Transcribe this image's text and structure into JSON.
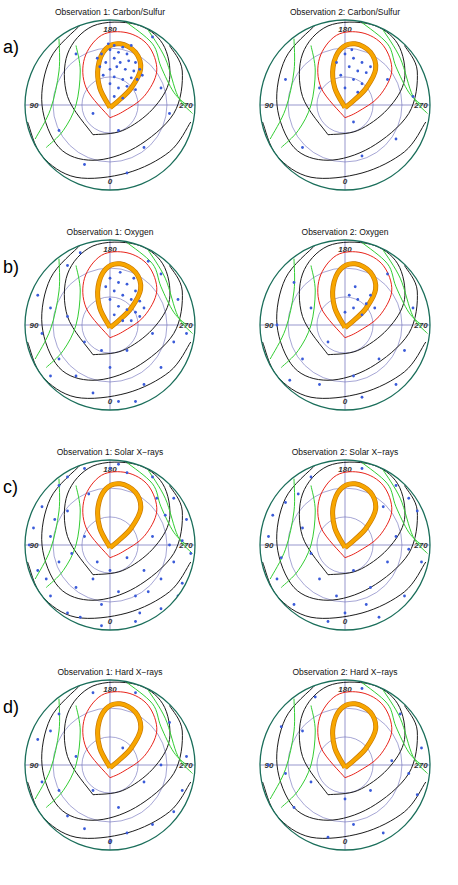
{
  "panel_labels": [
    "a)",
    "b)",
    "c)",
    "d)"
  ],
  "overlay": {
    "contours": [
      {
        "color": "#1c1c1c",
        "line_style": "solid",
        "x": [
          -0.2,
          -0.5,
          -0.5,
          -0.2,
          0.3,
          0.62,
          0.7,
          0.5,
          0.15,
          -0.2
        ],
        "y": [
          -0.35,
          0.1,
          0.6,
          0.93,
          0.95,
          0.72,
          0.3,
          -0.05,
          -0.3,
          -0.35
        ]
      },
      {
        "color": "#1c1c1c",
        "line_style": "solid",
        "x": [
          -0.35,
          -0.7,
          -0.8,
          -0.6,
          -0.2,
          0.3,
          0.75,
          0.85,
          0.7
        ],
        "y": [
          0.94,
          0.55,
          0.0,
          -0.5,
          -0.65,
          -0.5,
          -0.1,
          0.4,
          0.7
        ]
      },
      {
        "color": "#1c1c1c",
        "line_style": "solid",
        "x": [
          -0.97,
          -0.8,
          -0.4,
          0.2,
          0.7,
          0.95
        ],
        "y": [
          -0.2,
          -0.6,
          -0.85,
          -0.8,
          -0.55,
          -0.2
        ]
      },
      {
        "color": "#33cc33",
        "line_style": "solid",
        "x": [
          -0.4,
          -0.35,
          -0.4,
          -0.55,
          -0.75
        ],
        "y": [
          0.7,
          0.4,
          0.0,
          -0.3,
          -0.5
        ]
      },
      {
        "color": "#33cc33",
        "line_style": "solid",
        "x": [
          -0.6,
          -0.6,
          -0.7,
          -0.88
        ],
        "y": [
          0.78,
          0.4,
          -0.05,
          -0.4
        ]
      },
      {
        "color": "#33cc33",
        "line_style": "solid",
        "x": [
          0.45,
          0.65,
          0.8,
          0.97
        ],
        "y": [
          0.88,
          0.55,
          0.1,
          -0.1
        ]
      },
      {
        "color": "#33cc33",
        "line_style": "solid",
        "x": [
          0.2,
          0.5,
          0.6,
          0.75,
          0.9
        ],
        "y": [
          0.97,
          0.72,
          0.45,
          0.15,
          0.0
        ]
      },
      {
        "color": "#e8231a",
        "line_style": "solid",
        "x": [
          0.0,
          -0.28,
          -0.3,
          -0.1,
          0.2,
          0.45,
          0.55,
          0.4,
          0.15,
          0.0
        ],
        "y": [
          -0.15,
          0.2,
          0.55,
          0.82,
          0.85,
          0.7,
          0.4,
          0.1,
          -0.08,
          -0.15
        ]
      },
      {
        "color": "#f7a600",
        "line_style": "thick",
        "x": [
          0.0,
          -0.12,
          -0.14,
          -0.05,
          0.12,
          0.3,
          0.36,
          0.25,
          0.1,
          0.0
        ],
        "y": [
          -0.03,
          0.2,
          0.45,
          0.66,
          0.72,
          0.62,
          0.42,
          0.2,
          0.05,
          -0.03
        ]
      }
    ]
  },
  "chart_data": [
    {
      "type": "scatter",
      "title": "Observation 1: Carbon/Sulfur",
      "color": "#3a5bd9",
      "marker": "dot",
      "xlim": [
        -1,
        1
      ],
      "ylim": [
        -1,
        1
      ],
      "angle_ticks": [
        0,
        90,
        180,
        270
      ],
      "x": [
        -0.1,
        0.0,
        0.05,
        0.1,
        0.15,
        0.2,
        -0.05,
        0.05,
        0.12,
        0.22,
        0.3,
        -0.12,
        0.0,
        0.08,
        0.18,
        0.28,
        0.35,
        -0.08,
        0.05,
        0.15,
        0.25,
        0.32,
        0.0,
        0.1,
        0.2,
        0.3,
        0.05,
        0.15,
        -0.02,
        0.25,
        -0.15,
        0.38,
        0.5,
        -0.4,
        0.6,
        -0.2,
        0.1,
        0.4,
        -0.6,
        0.7,
        -0.3,
        0.2
      ],
      "y": [
        0.6,
        0.65,
        0.7,
        0.62,
        0.68,
        0.6,
        0.5,
        0.55,
        0.5,
        0.52,
        0.5,
        0.45,
        0.42,
        0.45,
        0.42,
        0.4,
        0.42,
        0.35,
        0.33,
        0.3,
        0.32,
        0.3,
        0.25,
        0.2,
        0.22,
        0.18,
        0.1,
        0.08,
        0.72,
        0.7,
        0.55,
        0.35,
        0.8,
        0.6,
        0.2,
        -0.1,
        -0.3,
        -0.5,
        -0.3,
        -0.1,
        -0.7,
        -0.8
      ]
    },
    {
      "type": "scatter",
      "title": "Observation 2: Carbon/Sulfur",
      "color": "#3a5bd9",
      "marker": "dot",
      "xlim": [
        -1,
        1
      ],
      "ylim": [
        -1,
        1
      ],
      "angle_ticks": [
        0,
        90,
        180,
        270
      ],
      "x": [
        0.0,
        0.1,
        0.2,
        0.05,
        0.15,
        0.25,
        -0.05,
        0.1,
        0.2,
        0.3,
        0.08,
        0.0,
        0.15,
        -0.1,
        0.5,
        -0.3,
        0.6,
        -0.5,
        0.2,
        0.8,
        -0.7,
        0.1
      ],
      "y": [
        0.6,
        0.55,
        0.5,
        0.45,
        0.4,
        0.38,
        0.35,
        0.3,
        0.25,
        0.45,
        0.65,
        0.2,
        0.15,
        0.5,
        0.3,
        0.2,
        -0.4,
        -0.5,
        -0.6,
        0.1,
        0.3,
        -0.2
      ]
    },
    {
      "type": "scatter",
      "title": "Observation 1: Oxygen",
      "color": "#3a5bd9",
      "marker": "dot",
      "xlim": [
        -1,
        1
      ],
      "ylim": [
        -1,
        1
      ],
      "angle_ticks": [
        0,
        90,
        180,
        270
      ],
      "x": [
        0.0,
        0.1,
        0.2,
        0.3,
        0.05,
        0.15,
        0.25,
        0.35,
        0.0,
        0.1,
        0.2,
        0.3,
        0.4,
        0.05,
        0.15,
        0.25,
        0.35,
        -0.05,
        0.28,
        0.12,
        -0.5,
        0.6,
        -0.7,
        -0.8,
        -0.6,
        -0.4,
        -0.2,
        0.0,
        0.2,
        0.4,
        0.6,
        0.75,
        0.8,
        -0.3,
        -0.5,
        0.1,
        -0.85,
        0.5,
        -0.1,
        0.3,
        0.9,
        -0.7,
        0.45,
        -0.35
      ],
      "y": [
        0.55,
        0.5,
        0.48,
        0.4,
        0.4,
        0.35,
        0.3,
        0.28,
        0.3,
        0.22,
        0.18,
        0.15,
        0.2,
        0.12,
        0.05,
        0.05,
        0.1,
        0.45,
        0.55,
        0.62,
        0.7,
        0.6,
        0.2,
        -0.1,
        -0.4,
        -0.6,
        -0.8,
        -0.5,
        -0.3,
        -0.7,
        -0.5,
        -0.2,
        0.3,
        -0.2,
        0.1,
        -0.9,
        0.35,
        -0.1,
        -0.3,
        -0.9,
        -0.1,
        -0.6,
        0.75,
        0.85
      ]
    },
    {
      "type": "scatter",
      "title": "Observation 2: Oxygen",
      "color": "#3a5bd9",
      "marker": "dot",
      "xlim": [
        -1,
        1
      ],
      "ylim": [
        -1,
        1
      ],
      "angle_ticks": [
        0,
        90,
        180,
        270
      ],
      "x": [
        0.05,
        0.15,
        0.25,
        0.1,
        0.2,
        0.3,
        0.0,
        0.35,
        0.12,
        -0.6,
        0.5,
        -0.8,
        -0.5,
        -0.3,
        0.1,
        0.4,
        0.7,
        0.8,
        -0.2,
        0.2,
        -0.65,
        0.6,
        -0.4
      ],
      "y": [
        0.35,
        0.3,
        0.25,
        0.2,
        0.12,
        0.35,
        0.15,
        0.2,
        0.45,
        0.5,
        0.6,
        0.0,
        -0.4,
        -0.7,
        -0.6,
        -0.4,
        -0.3,
        0.2,
        -0.2,
        -0.85,
        -0.65,
        -0.7,
        0.2
      ]
    },
    {
      "type": "scatter",
      "title": "Observation 1: Solar X−rays",
      "color": "#3a5bd9",
      "marker": "dot",
      "xlim": [
        -1,
        1
      ],
      "ylim": [
        -1,
        1
      ],
      "angle_ticks": [
        0,
        90,
        180,
        270
      ],
      "x": [
        -0.9,
        -0.85,
        -0.8,
        -0.7,
        -0.6,
        -0.5,
        -0.3,
        -0.1,
        0.1,
        0.3,
        0.5,
        0.6,
        0.75,
        0.85,
        0.9,
        0.95,
        -0.95,
        -0.7,
        -0.6,
        -0.5,
        -0.4,
        -0.3,
        -0.2,
        -0.1,
        0.0,
        0.1,
        0.2,
        0.3,
        0.4,
        0.5,
        0.6,
        0.7,
        0.65,
        0.55,
        -0.25,
        -0.45,
        0.35,
        -0.75,
        0.8,
        -0.5,
        0.2,
        -0.15,
        0.45,
        -0.35,
        0.75,
        -0.65,
        0.0,
        0.85
      ],
      "y": [
        0.2,
        -0.3,
        0.45,
        -0.6,
        0.7,
        -0.8,
        0.9,
        -0.95,
        0.95,
        -0.9,
        0.8,
        -0.75,
        0.55,
        -0.45,
        0.3,
        -0.1,
        0.0,
        0.1,
        -0.2,
        0.4,
        -0.5,
        0.1,
        -0.4,
        -0.7,
        -0.3,
        -0.55,
        -0.15,
        -0.6,
        -0.3,
        0.1,
        -0.4,
        0.0,
        0.35,
        0.55,
        0.6,
        -0.1,
        -0.8,
        -0.4,
        -0.6,
        0.8,
        0.85,
        -0.2,
        -0.55,
        -0.85,
        -0.2,
        0.3,
        0.9,
        0.05
      ]
    },
    {
      "type": "scatter",
      "title": "Observation 2: Solar X−rays",
      "color": "#3a5bd9",
      "marker": "dot",
      "xlim": [
        -1,
        1
      ],
      "ylim": [
        -1,
        1
      ],
      "angle_ticks": [
        0,
        90,
        180,
        270
      ],
      "x": [
        -0.9,
        -0.8,
        -0.7,
        -0.6,
        -0.4,
        -0.2,
        0.2,
        0.4,
        0.6,
        0.7,
        0.85,
        0.9,
        -0.5,
        -0.3,
        -0.1,
        0.1,
        0.3,
        0.5,
        0.6,
        -0.4,
        0.0,
        -0.75,
        0.75,
        0.45,
        -0.55,
        0.25,
        -0.85,
        0.75
      ],
      "y": [
        0.1,
        -0.4,
        0.5,
        -0.7,
        0.8,
        -0.9,
        0.9,
        -0.85,
        0.7,
        -0.6,
        0.4,
        -0.2,
        0.2,
        -0.4,
        -0.6,
        -0.3,
        -0.5,
        -0.2,
        0.1,
        -0.1,
        -0.8,
        -0.15,
        -0.05,
        0.45,
        0.6,
        -0.7,
        0.35,
        0.55
      ]
    },
    {
      "type": "scatter",
      "title": "Observation 1: Hard X−rays",
      "color": "#3a5bd9",
      "marker": "dot",
      "xlim": [
        -1,
        1
      ],
      "ylim": [
        -1,
        1
      ],
      "angle_ticks": [
        0,
        90,
        180,
        270
      ],
      "x": [
        -0.85,
        -0.8,
        -0.6,
        -0.5,
        -0.2,
        0.0,
        0.3,
        0.5,
        0.7,
        0.85,
        0.9,
        -0.4,
        -0.2,
        0.1,
        0.4,
        0.6,
        -0.6,
        0.2,
        -0.7,
        0.75,
        -0.3,
        0.15
      ],
      "y": [
        0.3,
        -0.2,
        0.6,
        -0.6,
        0.85,
        -0.9,
        0.85,
        -0.7,
        0.5,
        -0.3,
        0.1,
        0.1,
        -0.3,
        -0.5,
        -0.2,
        0.0,
        -0.3,
        -0.8,
        0.4,
        -0.55,
        -0.75,
        0.2
      ]
    },
    {
      "type": "scatter",
      "title": "Observation 2: Hard X−rays",
      "color": "#3a5bd9",
      "marker": "dot",
      "xlim": [
        -1,
        1
      ],
      "ylim": [
        -1,
        1
      ],
      "angle_ticks": [
        0,
        90,
        180,
        270
      ],
      "x": [
        -0.9,
        -0.75,
        -0.6,
        -0.35,
        -0.2,
        0.2,
        0.45,
        0.65,
        0.85,
        0.9,
        -0.4,
        0.0,
        0.3,
        0.55,
        -0.7,
        0.1,
        0.75,
        -0.5
      ],
      "y": [
        0.0,
        0.45,
        -0.5,
        0.8,
        -0.85,
        0.9,
        -0.8,
        0.6,
        -0.35,
        0.2,
        -0.2,
        -0.4,
        -0.3,
        0.05,
        -0.1,
        -0.7,
        -0.1,
        0.4
      ]
    }
  ]
}
